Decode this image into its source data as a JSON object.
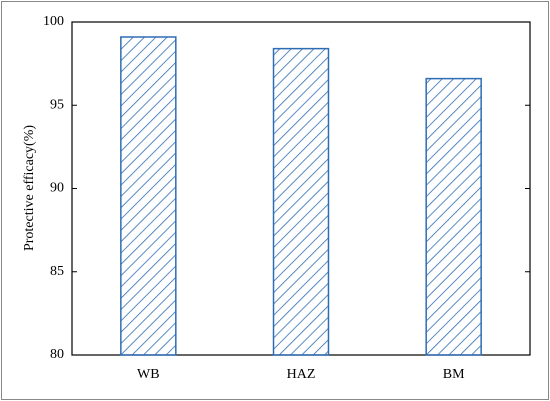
{
  "chart_data": {
    "type": "bar",
    "y_label": "Protective efficacy(%)",
    "categories": [
      "WB",
      "HAZ",
      "BM"
    ],
    "values": [
      99.1,
      98.4,
      96.6
    ],
    "color": "#2e6db4",
    "ylim": [
      80,
      100
    ],
    "yticks": [
      80,
      85,
      90,
      95,
      100
    ],
    "grid": false
  }
}
